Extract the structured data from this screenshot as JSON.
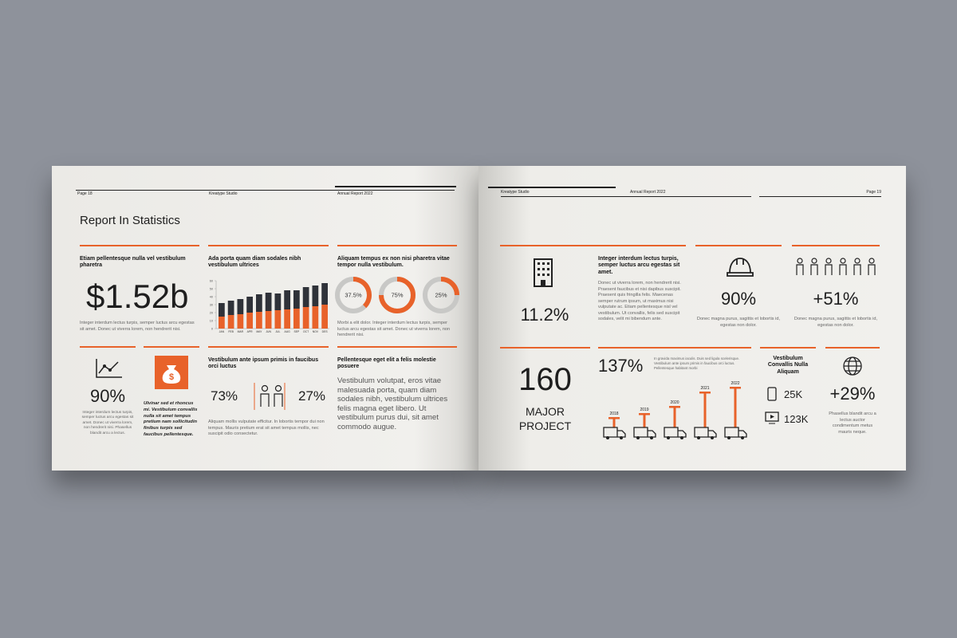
{
  "left_page": {
    "header": {
      "page": "Page 18",
      "brand": "Kreatype Studio",
      "report": "Annual Report 2022"
    },
    "title": "Report In Statistics",
    "blocks": [
      {
        "heading": "Etiam pellentesque nulla vel vestibulum pharetra",
        "figure": "$1.52b",
        "body": "Integer interdum lectus turpis, semper luctus arcu egestas sit amet. Donec ut viverra lorem, non hendrerit nisi."
      },
      {
        "heading": "Ada porta quam diam sodales nibh vestibulum ultrices"
      },
      {
        "heading": "Aliquam tempus ex non nisi pharetra vitae tempor nulla vestibulum.",
        "body": "Morbi a elit dolor. Integer interdum lectus turpis, semper luctus arcu egestas sit amet. Donec ut viverra lorem, non hendrerit nisi."
      },
      {
        "figure": "90%",
        "body": "Integer interdum lectus turpis, semper luctus arcu egestas sit amet. Donec ut viverra lorem, non hendrerit nisi. Phasellus blandit arcu a lectus."
      },
      {
        "body": "Ulvinar sed et rhoncus mi. Vestibulum convallis nulla sit amet tempus pretium nam sollicitudin finibus turpis sed faucibus pellentesque."
      },
      {
        "heading": "Vestibulum ante ipsum primis in faucibus orci luctus",
        "figure_left": "73%",
        "figure_right": "27%",
        "body": "Aliquam mollis vulputate efficitur. In lobortis tempor dui non tempus. Mauris pretium erat sit amet tempus mollis, nec suscipit odio consectetur."
      },
      {
        "heading": "Pellentesque eget elit a felis molestie posuere",
        "body": "Vestibulum volutpat, eros vitae malesuada porta, quam diam sodales nibh, vestibulum ultrices felis magna eget libero. Ut vestibulum purus dui, sit amet commodo augue."
      }
    ]
  },
  "right_page": {
    "header": {
      "brand": "Kreatype Studio",
      "report": "Annual Report 2022",
      "page": "Page 19"
    },
    "blocks": [
      {
        "figure": "11.2%"
      },
      {
        "heading": "Integer interdum lectus turpis, semper luctus arcu egestas sit amet.",
        "body": "Donec ut viverra lorem, non hendrerit nisi. Praesent faucibus et nisi dapibus suscipit. Praesent quis fringilla felis. Maecenas semper rutrum ipsum, ut maximus nisi vulputate ac. Etiam pellentesque nisl vel vestibulum. Ut convallis, felis sed suscipit sodales, velit mi bibendum ante."
      },
      {
        "figure": "90%",
        "body": "Donec magna purus, sagittis et lobortis id, egestas non dolor."
      },
      {
        "figure": "+51%",
        "body": "Donec magna purus, sagittis et lobortis id, egestas non dolor."
      },
      {
        "figure": "160",
        "line1": "MAJOR",
        "line2": "PROJECT"
      },
      {
        "figure": "137%",
        "body": "In gravida maximus iaculis. Duis sed ligula scelerisque. Vestibulum ante ipsum primis in faucibus orci luctus. Pellentesque habitant morbi"
      },
      {
        "heading": "Vestibulum Convallis Nulla Aliquam",
        "stat1": "25K",
        "stat2": "123K"
      },
      {
        "figure": "+29%",
        "body": "Phasellus blandit arcu a lectus auctor condimentum metus mauris neque."
      }
    ]
  },
  "chart_data": [
    {
      "type": "bar",
      "stacked": true,
      "categories": [
        "JAN",
        "FEB",
        "MAR",
        "APR",
        "MAY",
        "JUN",
        "JUL",
        "AUG",
        "SEP",
        "OCT",
        "NOV",
        "DES"
      ],
      "series": [
        {
          "color": "#e8622a",
          "values": [
            15,
            17,
            18,
            20,
            21,
            22,
            23,
            24,
            25,
            27,
            28,
            30
          ]
        },
        {
          "color": "#2f3239",
          "values": [
            17,
            18,
            19,
            20,
            22,
            23,
            21,
            24,
            23,
            25,
            26,
            27
          ]
        }
      ],
      "ylim": [
        0,
        60
      ],
      "yticks": [
        0,
        10,
        20,
        30,
        40,
        50,
        60
      ]
    },
    {
      "type": "donut",
      "values": [
        37.5,
        75,
        25
      ],
      "value_labels": [
        "37.5%",
        "75%",
        "25%"
      ],
      "color": "#e8622a",
      "track_color": "#c8c8c6"
    },
    {
      "type": "tbar",
      "categories": [
        "2018",
        "2019",
        "2020",
        "2021",
        "2022"
      ],
      "values": [
        13,
        18,
        27,
        45,
        51
      ],
      "ylim": [
        0,
        60
      ],
      "color": "#e8622a"
    }
  ]
}
